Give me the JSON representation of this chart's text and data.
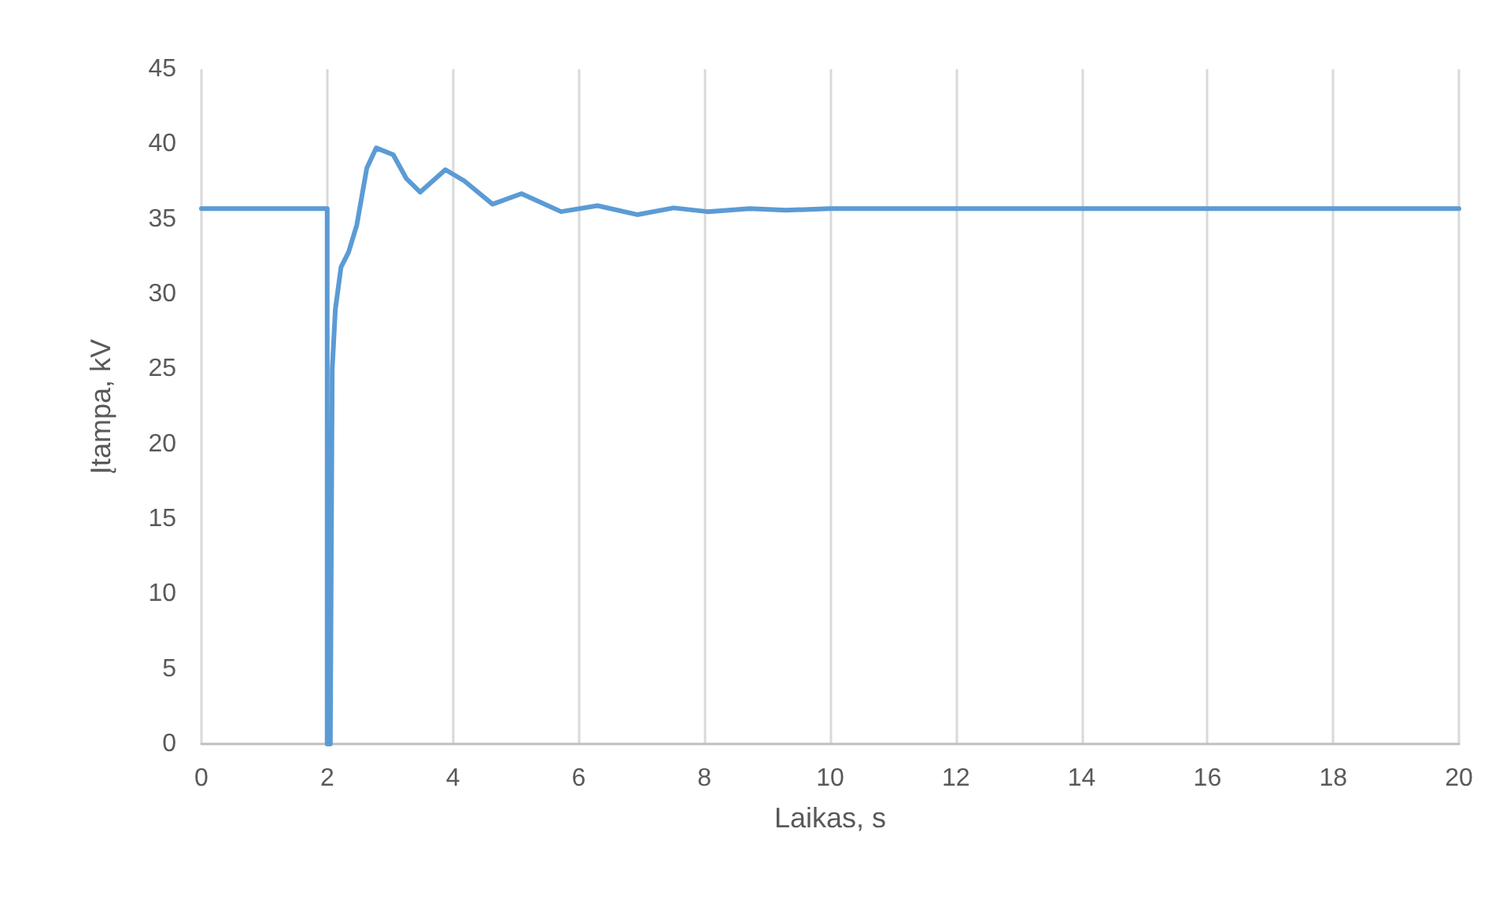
{
  "chart_data": {
    "type": "line",
    "xlabel": "Laikas, s",
    "ylabel": "Įtampa, kV",
    "xlim": [
      0,
      20
    ],
    "xticks": [
      0,
      2,
      4,
      6,
      8,
      10,
      12,
      14,
      16,
      18,
      20
    ],
    "ylim": [
      0,
      45
    ],
    "yticks": [
      0,
      5,
      10,
      15,
      20,
      25,
      30,
      35,
      40,
      45
    ],
    "grid": "x",
    "marker": "none",
    "line_style": "solid",
    "series": [
      {
        "color": "#5b9bd5",
        "x": [
          0,
          2,
          2,
          2.05,
          2.08,
          2.13,
          2.22,
          2.34,
          2.47,
          2.63,
          2.78,
          3.05,
          3.26,
          3.48,
          3.88,
          4.18,
          4.63,
          5.09,
          5.72,
          6.3,
          6.93,
          7.51,
          8.05,
          8.72,
          9.3,
          10,
          12,
          14,
          16,
          18,
          20
        ],
        "values": [
          35.7,
          35.7,
          0,
          0,
          25,
          29,
          31.8,
          32.8,
          34.6,
          38.4,
          39.75,
          39.3,
          37.7,
          36.8,
          38.3,
          37.55,
          36,
          36.7,
          35.5,
          35.9,
          35.3,
          35.75,
          35.5,
          35.7,
          35.6,
          35.7,
          35.7,
          35.7,
          35.7,
          35.7,
          35.7
        ]
      }
    ]
  }
}
